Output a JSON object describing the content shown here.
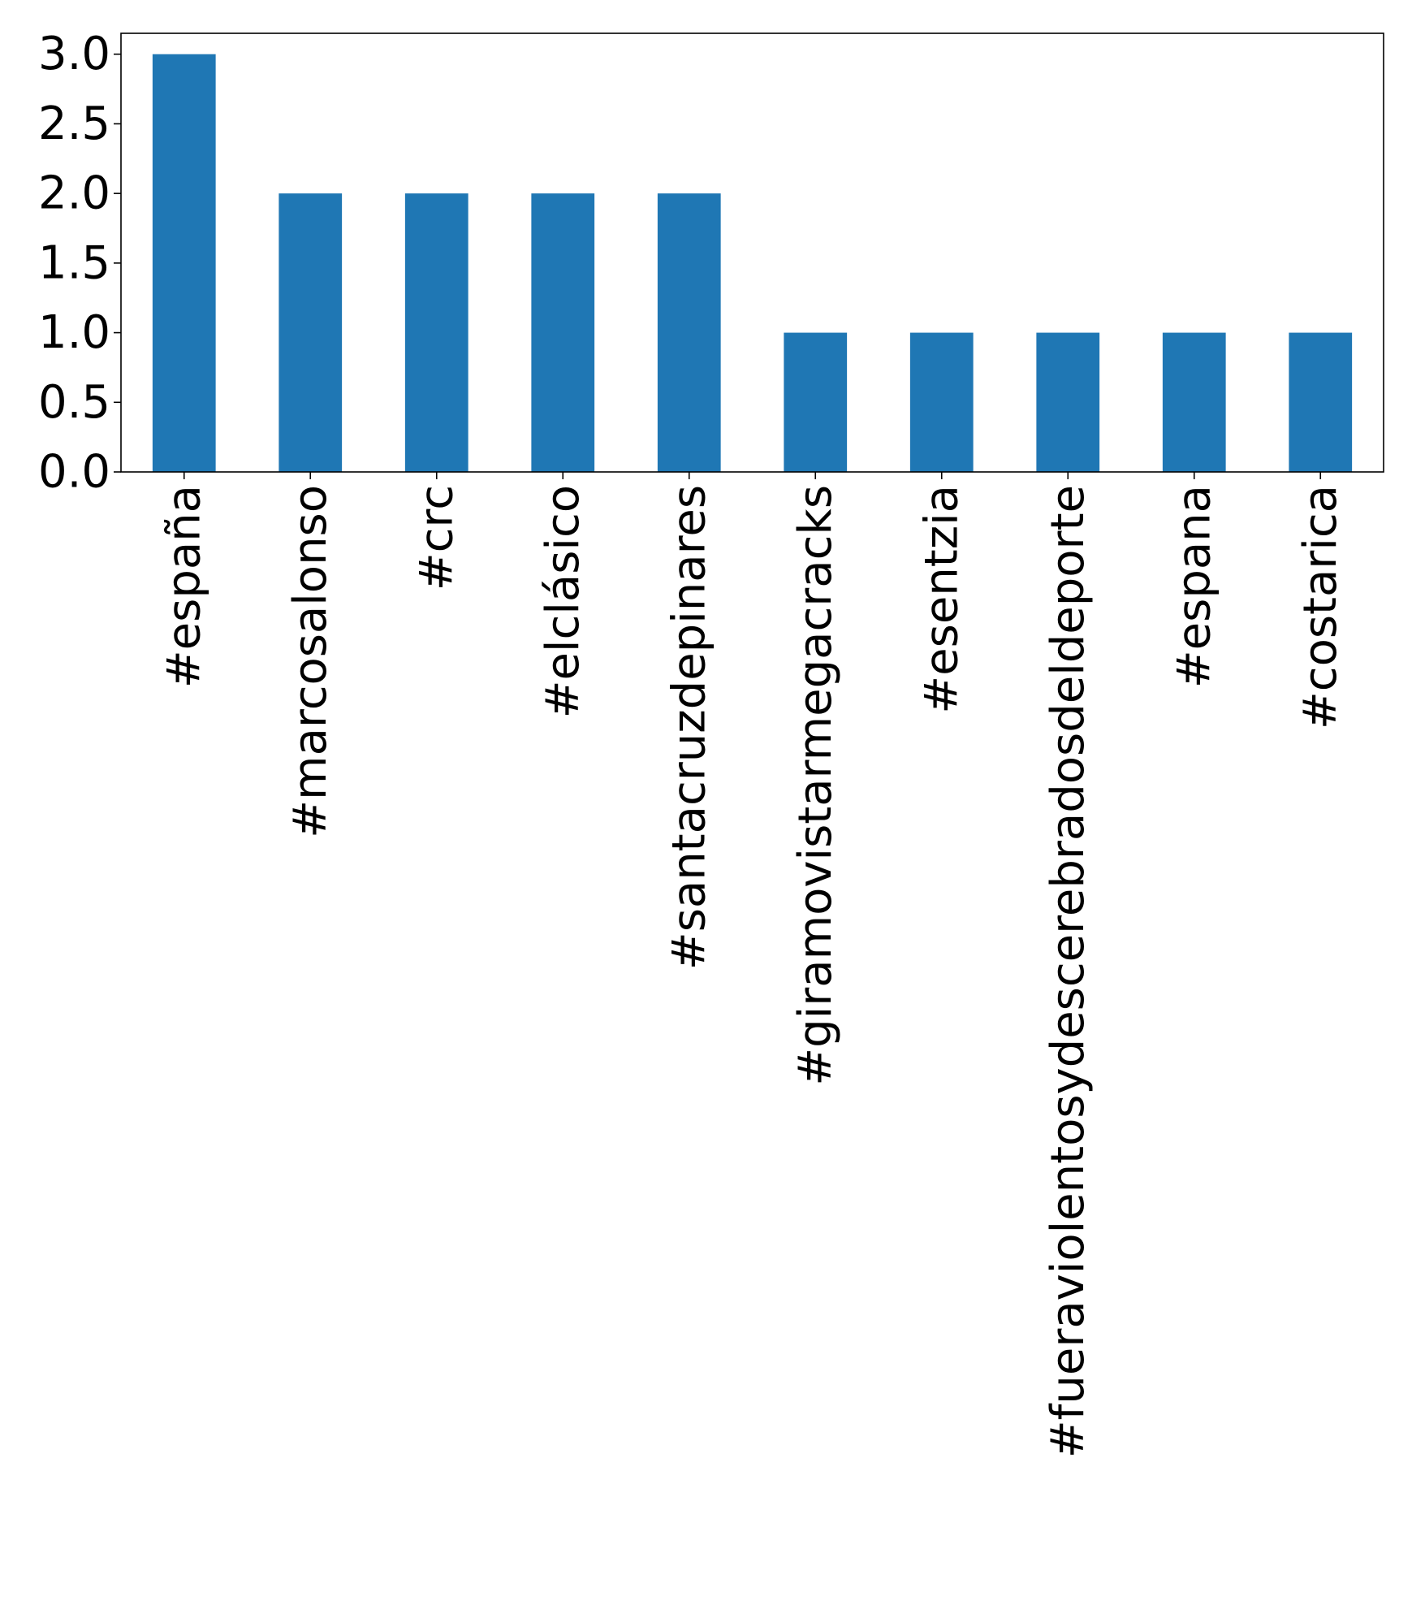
{
  "chart_data": {
    "type": "bar",
    "title": "",
    "xlabel": "",
    "ylabel": "",
    "categories": [
      "#españa",
      "#marcosalonso",
      "#crc",
      "#elclásico",
      "#santacruzdepinares",
      "#giramovistarmegacracks",
      "#esentzia",
      "#fueraviolentosydescerebradosdeldeporte",
      "#espana",
      "#costarica"
    ],
    "values": [
      3,
      2,
      2,
      2,
      2,
      1,
      1,
      1,
      1,
      1
    ],
    "ylim": [
      0,
      3.15
    ],
    "yticks": [
      0.0,
      0.5,
      1.0,
      1.5,
      2.0,
      2.5,
      3.0
    ],
    "ytick_labels": [
      "0.0",
      "0.5",
      "1.0",
      "1.5",
      "2.0",
      "2.5",
      "3.0"
    ],
    "grid": false,
    "legend": "none",
    "colors": {
      "bar": "#1f77b4",
      "axis": "#000000",
      "background": "#ffffff"
    }
  }
}
